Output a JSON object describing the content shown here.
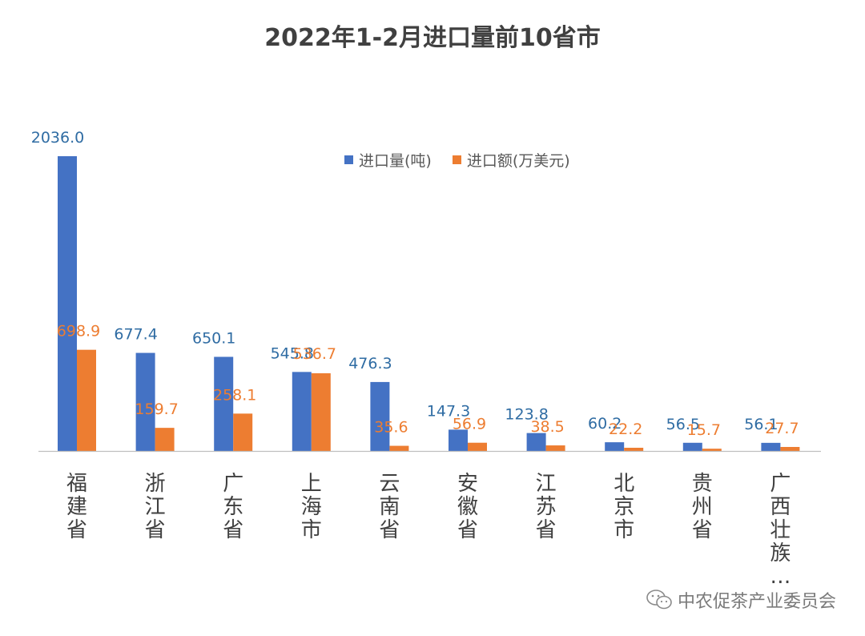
{
  "chart_data": {
    "type": "bar",
    "title": "2022年1-2月进口量前10省市",
    "categories": [
      "福建省",
      "浙江省",
      "广东省",
      "上海市",
      "云南省",
      "安徽省",
      "江苏省",
      "北京市",
      "贵州省",
      "广西壮族…"
    ],
    "series": [
      {
        "name": "进口量(吨)",
        "color": "#4472C4",
        "values": [
          2036.0,
          677.4,
          650.1,
          545.8,
          476.3,
          147.3,
          123.8,
          60.2,
          56.5,
          56.1
        ],
        "labels": [
          "2036.0",
          "677.4",
          "650.1",
          "545.8",
          "476.3",
          "147.3",
          "123.8",
          "60.2",
          "56.5",
          "56.1"
        ]
      },
      {
        "name": "进口额(万美元)",
        "color": "#ED7D31",
        "values": [
          698.9,
          159.7,
          258.1,
          536.7,
          35.6,
          56.9,
          38.5,
          22.2,
          15.7,
          27.7
        ],
        "labels": [
          "698.9",
          "159.7",
          "258.1",
          "536.7",
          "35.6",
          "56.9",
          "38.5",
          "22.2",
          "15.7",
          "27.7"
        ]
      }
    ],
    "xlabel": "",
    "ylabel": "",
    "ylim": [
      0,
      2036
    ],
    "legend_position": "top-right",
    "grid": false
  },
  "watermark": {
    "text": "中农促茶产业委员会",
    "icon": "wechat-icon"
  }
}
